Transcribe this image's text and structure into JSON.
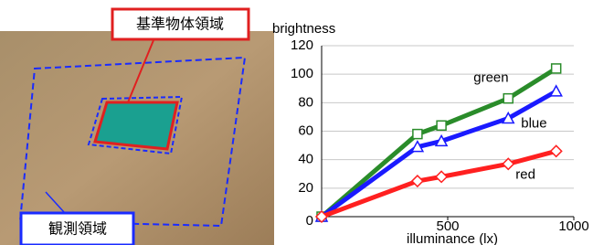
{
  "image": {
    "labels": [
      "基準物体領域",
      "観測領域"
    ]
  },
  "chart_data": {
    "type": "line",
    "y_label": "brightness",
    "x_label": "illuminance (lx)",
    "xlim": [
      0,
      1000
    ],
    "ylim": [
      0,
      120
    ],
    "xticks": [
      500,
      1000
    ],
    "yticks": [
      0,
      20,
      40,
      60,
      80,
      100,
      120
    ],
    "grid": true,
    "series": [
      {
        "name": "green",
        "color": "#2a8c2a",
        "marker": "square",
        "x": [
          0,
          380,
          475,
          740,
          930
        ],
        "values": [
          0,
          58,
          64,
          83,
          104
        ]
      },
      {
        "name": "blue",
        "color": "#1a1aff",
        "marker": "triangle",
        "x": [
          0,
          380,
          475,
          740,
          930
        ],
        "values": [
          0,
          49,
          53,
          69,
          88
        ]
      },
      {
        "name": "red",
        "color": "#ff2020",
        "marker": "diamond",
        "x": [
          0,
          380,
          475,
          740,
          930
        ],
        "values": [
          0,
          25,
          28,
          37,
          46
        ]
      }
    ]
  }
}
